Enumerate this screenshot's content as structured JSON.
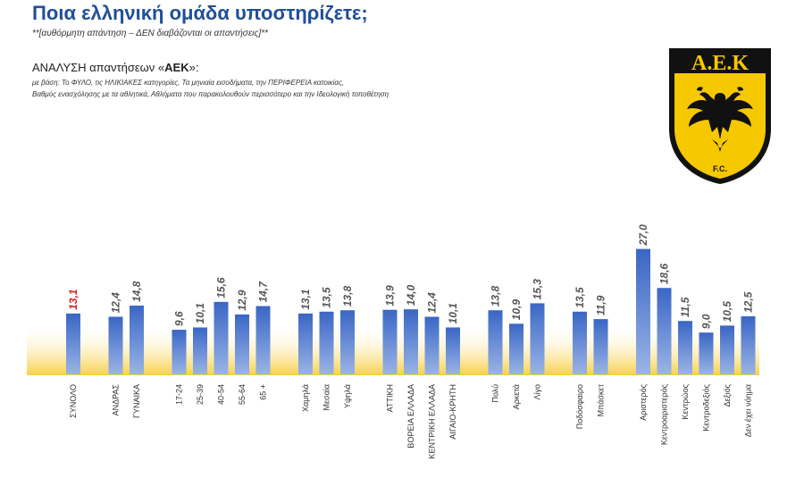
{
  "header": {
    "title": "Ποια ελληνική ομάδα υποστηρίζετε;",
    "subtitle": "**[αυθόρμητη απάντηση – ΔΕΝ διαβάζονται οι απαντήσεις]**",
    "analysis_prefix": "ΑΝΑΛΥΣΗ απαντήσεων «",
    "analysis_team": "ΑΕΚ",
    "analysis_suffix": "»:",
    "basis_line1": "με βάση: Το ΦΥΛΟ, τις ΗΛΙΚΙΑΚΕΣ κατηγορίες, Τα μηνιαία εισοδήματα, την ΠΕΡΙΦΕΡΕΙΑ κατοικίας,",
    "basis_line2": "Βαθμός ενασχόλησης με τα αθλητικά, Αθλήματα που παρακολουθούν περισσότερο και την Ιδεολογική τοποθέτηση"
  },
  "logo": {
    "text": "Α.Ε.Κ",
    "subtext": "F.C.",
    "colors": {
      "yellow": "#f6c800",
      "black": "#111111"
    }
  },
  "chart_data": {
    "type": "bar",
    "ylim": [
      0,
      30
    ],
    "colors": {
      "bar_top": "#3a66c4",
      "bar_bottom": "#9ab4e6",
      "highlight": "#d62020",
      "label": "#555555",
      "base_yellow": "#f7d046"
    },
    "groups": [
      {
        "name": "total",
        "categories": [
          "ΣΥΝΟΛΟ"
        ],
        "values": [
          13.1
        ],
        "highlight": [
          true
        ]
      },
      {
        "name": "gender",
        "categories": [
          "ΑΝΔΡΑΣ",
          "ΓΥΝΑΙΚΑ"
        ],
        "values": [
          12.4,
          14.8
        ]
      },
      {
        "name": "age",
        "categories": [
          "17-24",
          "25-39",
          "40-54",
          "55-64",
          "65 +"
        ],
        "values": [
          9.6,
          10.1,
          15.6,
          12.9,
          14.7
        ]
      },
      {
        "name": "income",
        "categories": [
          "Χαμηλά",
          "Μεσαία",
          "Υψηλά"
        ],
        "values": [
          13.1,
          13.5,
          13.8
        ]
      },
      {
        "name": "region",
        "categories": [
          "ΑΤΤΙΚΗ",
          "ΒΟΡΕΙΑ ΕΛΛΑΔΑ",
          "ΚΕΝΤΡΙΚΗ ΕΛΛΑΔΑ",
          "ΑΙΓΑΙΟ-ΚΡΗΤΗ"
        ],
        "values": [
          13.9,
          14.0,
          12.4,
          10.1
        ]
      },
      {
        "name": "involvement",
        "categories": [
          "Πολύ",
          "Αρκετά",
          "Λίγο"
        ],
        "values": [
          13.8,
          10.9,
          15.3
        ]
      },
      {
        "name": "sport",
        "categories": [
          "Ποδόσφαιρο",
          "Μπάσκετ"
        ],
        "values": [
          13.5,
          11.9
        ]
      },
      {
        "name": "ideology",
        "categories": [
          "Αριστερός",
          "Κεντροαριστερός",
          "Κεντρώος",
          "Κεντροδεξιός",
          "Δεξιός",
          "Δεν έχει νόημα"
        ],
        "values": [
          27.0,
          18.6,
          11.5,
          9.0,
          10.5,
          12.5
        ]
      }
    ],
    "value_labels": [
      "13,1",
      "12,4",
      "14,8",
      "9,6",
      "10,1",
      "15,6",
      "12,9",
      "14,7",
      "13,1",
      "13,5",
      "13,8",
      "13,9",
      "14,0",
      "12,4",
      "10,1",
      "13,8",
      "10,9",
      "15,3",
      "13,5",
      "11,9",
      "27,0",
      "18,6",
      "11,5",
      "9,0",
      "10,5",
      "12,5"
    ]
  }
}
